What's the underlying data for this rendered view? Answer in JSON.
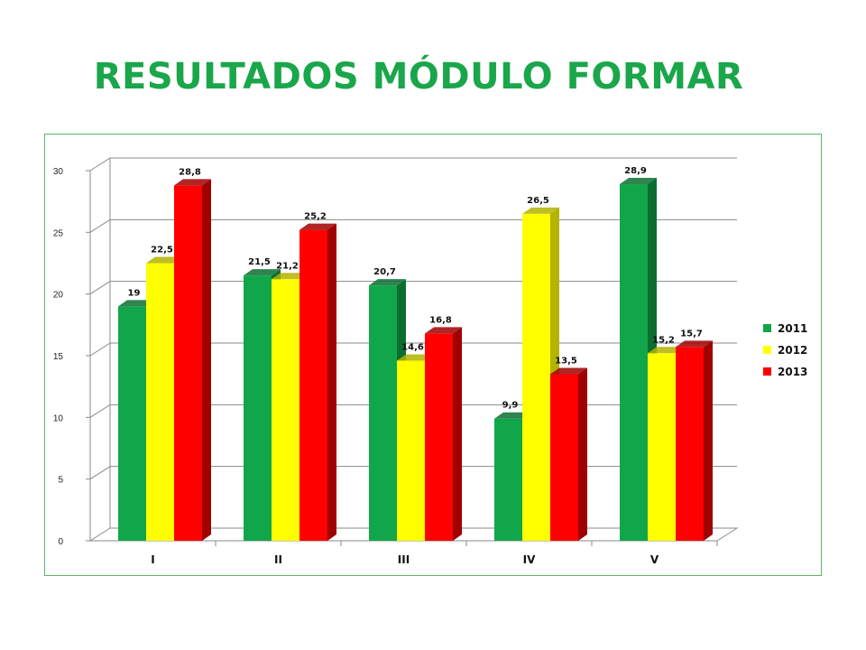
{
  "slide": {
    "title": "RESULTADOS MÓDULO FORMAR"
  },
  "chart_data": {
    "type": "bar",
    "style": "3d-clustered-column",
    "categories": [
      "I",
      "II",
      "III",
      "IV",
      "V"
    ],
    "series": [
      {
        "name": "2011",
        "color": "#12a64b",
        "side_color": "#0b6e31",
        "values": [
          19,
          21.5,
          20.7,
          9.9,
          28.9
        ],
        "labels": [
          "19",
          "21,5",
          "20,7",
          "9,9",
          "28,9"
        ]
      },
      {
        "name": "2012",
        "color": "#ffff00",
        "side_color": "#b3b300",
        "values": [
          22.5,
          21.2,
          14.6,
          26.5,
          15.2
        ],
        "labels": [
          "22,5",
          "21,2",
          "14,6",
          "26,5",
          "15,2"
        ]
      },
      {
        "name": "2013",
        "color": "#ff0000",
        "side_color": "#a00000",
        "values": [
          28.8,
          25.2,
          16.8,
          13.5,
          15.7
        ],
        "labels": [
          "28,8",
          "25,2",
          "16,8",
          "13,5",
          "15,7"
        ]
      }
    ],
    "ylim": [
      0,
      30
    ],
    "yticks": [
      0,
      5,
      10,
      15,
      20,
      25,
      30
    ],
    "ytick_labels": [
      "0",
      "5",
      "10",
      "15",
      "20",
      "25",
      "30"
    ],
    "grid": true,
    "legend_position": "right",
    "frame_color": "#57b865"
  }
}
